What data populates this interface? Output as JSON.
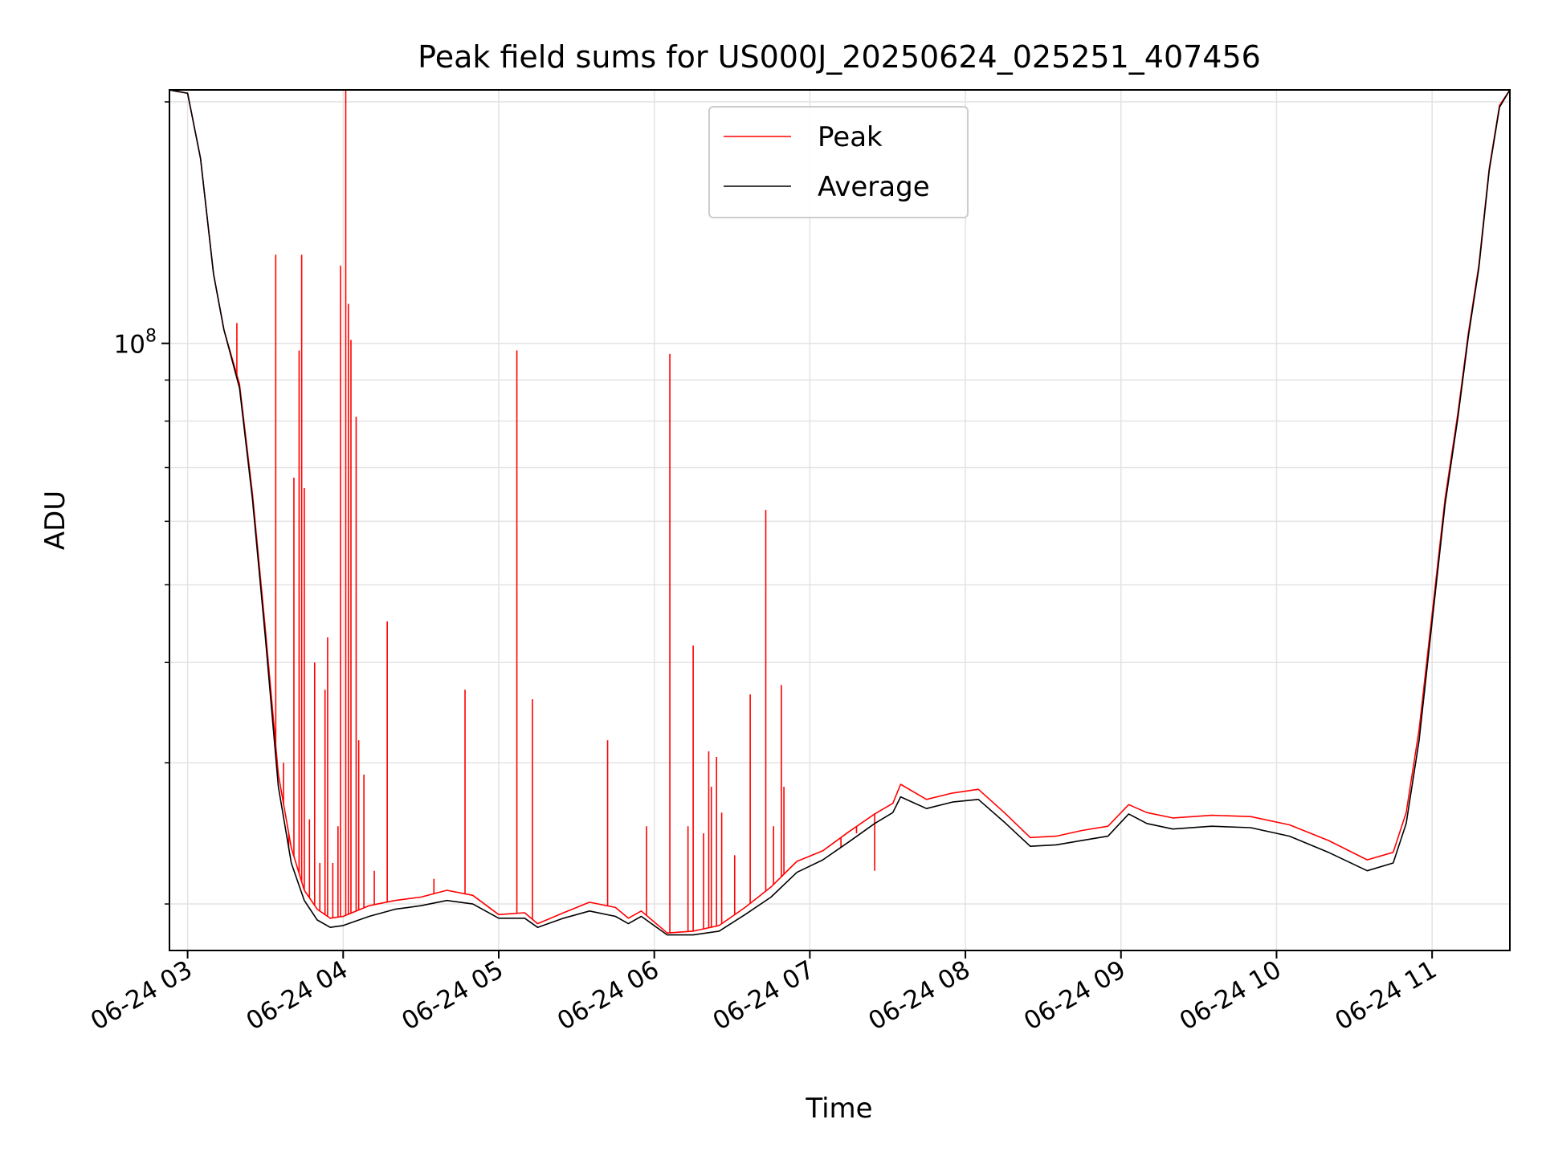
{
  "chart_data": {
    "type": "line",
    "title": "Peak field sums for US000J_20250624_025251_407456",
    "xlabel": "Time",
    "ylabel": "ADU",
    "x_axis": "date",
    "y_scale": "log",
    "grid": true,
    "legend_position": "top-center",
    "xlim": [
      "2025-06-24 02:53",
      "2025-06-24 11:30"
    ],
    "ylim": [
      17500000,
      207000000
    ],
    "x_ticks": [
      {
        "value": "2025-06-24 03:00",
        "label": "06-24 03"
      },
      {
        "value": "2025-06-24 04:00",
        "label": "06-24 04"
      },
      {
        "value": "2025-06-24 05:00",
        "label": "06-24 05"
      },
      {
        "value": "2025-06-24 06:00",
        "label": "06-24 06"
      },
      {
        "value": "2025-06-24 07:00",
        "label": "06-24 07"
      },
      {
        "value": "2025-06-24 08:00",
        "label": "06-24 08"
      },
      {
        "value": "2025-06-24 09:00",
        "label": "06-24 09"
      },
      {
        "value": "2025-06-24 10:00",
        "label": "06-24 10"
      },
      {
        "value": "2025-06-24 11:00",
        "label": "06-24 11"
      }
    ],
    "y_major_ticks": [
      {
        "value": 100000000,
        "base": "10",
        "exp": "8"
      }
    ],
    "y_minor_ticks": [
      20000000,
      30000000,
      40000000,
      50000000,
      60000000,
      70000000,
      80000000,
      90000000,
      200000000
    ],
    "series": [
      {
        "name": "Peak",
        "color": "#ff0000",
        "points": [
          [
            "2025-06-24 02:53",
            207000000
          ],
          [
            "2025-06-24 03:00",
            205000000
          ],
          [
            "2025-06-24 03:05",
            170000000
          ],
          [
            "2025-06-24 03:10",
            122000000
          ],
          [
            "2025-06-24 03:14",
            104000000
          ],
          [
            "2025-06-24 03:20",
            89000000
          ],
          [
            "2025-06-24 03:25",
            65000000
          ],
          [
            "2025-06-24 03:30",
            44000000
          ],
          [
            "2025-06-24 03:35",
            29000000
          ],
          [
            "2025-06-24 03:40",
            23500000
          ],
          [
            "2025-06-24 03:45",
            20800000
          ],
          [
            "2025-06-24 03:50",
            19700000
          ],
          [
            "2025-06-24 03:55",
            19200000
          ],
          [
            "2025-06-24 04:00",
            19300000
          ],
          [
            "2025-06-24 04:10",
            19900000
          ],
          [
            "2025-06-24 04:20",
            20200000
          ],
          [
            "2025-06-24 04:30",
            20400000
          ],
          [
            "2025-06-24 04:40",
            20800000
          ],
          [
            "2025-06-24 04:50",
            20500000
          ],
          [
            "2025-06-24 05:00",
            19400000
          ],
          [
            "2025-06-24 05:10",
            19500000
          ],
          [
            "2025-06-24 05:15",
            18900000
          ],
          [
            "2025-06-24 05:25",
            19500000
          ],
          [
            "2025-06-24 05:35",
            20100000
          ],
          [
            "2025-06-24 05:45",
            19800000
          ],
          [
            "2025-06-24 05:50",
            19200000
          ],
          [
            "2025-06-24 05:55",
            19600000
          ],
          [
            "2025-06-24 06:05",
            18400000
          ],
          [
            "2025-06-24 06:15",
            18500000
          ],
          [
            "2025-06-24 06:25",
            18800000
          ],
          [
            "2025-06-24 06:35",
            19800000
          ],
          [
            "2025-06-24 06:45",
            21000000
          ],
          [
            "2025-06-24 06:55",
            22600000
          ],
          [
            "2025-06-24 07:05",
            23300000
          ],
          [
            "2025-06-24 07:15",
            24600000
          ],
          [
            "2025-06-24 07:25",
            25900000
          ],
          [
            "2025-06-24 07:32",
            26700000
          ],
          [
            "2025-06-24 07:35",
            28200000
          ],
          [
            "2025-06-24 07:45",
            27000000
          ],
          [
            "2025-06-24 07:55",
            27500000
          ],
          [
            "2025-06-24 08:05",
            27800000
          ],
          [
            "2025-06-24 08:15",
            26000000
          ],
          [
            "2025-06-24 08:25",
            24200000
          ],
          [
            "2025-06-24 08:35",
            24300000
          ],
          [
            "2025-06-24 08:45",
            24700000
          ],
          [
            "2025-06-24 08:55",
            25000000
          ],
          [
            "2025-06-24 09:03",
            26600000
          ],
          [
            "2025-06-24 09:10",
            26000000
          ],
          [
            "2025-06-24 09:20",
            25600000
          ],
          [
            "2025-06-24 09:35",
            25800000
          ],
          [
            "2025-06-24 09:50",
            25700000
          ],
          [
            "2025-06-24 10:05",
            25100000
          ],
          [
            "2025-06-24 10:20",
            24000000
          ],
          [
            "2025-06-24 10:35",
            22700000
          ],
          [
            "2025-06-24 10:45",
            23200000
          ],
          [
            "2025-06-24 10:50",
            26000000
          ],
          [
            "2025-06-24 10:55",
            33000000
          ],
          [
            "2025-06-24 11:00",
            46000000
          ],
          [
            "2025-06-24 11:05",
            64000000
          ],
          [
            "2025-06-24 11:10",
            82000000
          ],
          [
            "2025-06-24 11:14",
            103000000
          ],
          [
            "2025-06-24 11:18",
            125000000
          ],
          [
            "2025-06-24 11:22",
            165000000
          ],
          [
            "2025-06-24 11:26",
            198000000
          ],
          [
            "2025-06-24 11:30",
            207000000
          ]
        ],
        "spikes": [
          [
            "2025-06-24 03:19",
            106000000
          ],
          [
            "2025-06-24 03:34",
            129000000
          ],
          [
            "2025-06-24 03:37",
            30000000
          ],
          [
            "2025-06-24 03:39",
            23500000
          ],
          [
            "2025-06-24 03:41",
            68000000
          ],
          [
            "2025-06-24 03:43",
            98000000
          ],
          [
            "2025-06-24 03:44",
            129000000
          ],
          [
            "2025-06-24 03:45",
            66000000
          ],
          [
            "2025-06-24 03:47",
            25500000
          ],
          [
            "2025-06-24 03:49",
            40000000
          ],
          [
            "2025-06-24 03:51",
            22500000
          ],
          [
            "2025-06-24 03:53",
            37000000
          ],
          [
            "2025-06-24 03:54",
            43000000
          ],
          [
            "2025-06-24 03:56",
            22500000
          ],
          [
            "2025-06-24 03:58",
            25000000
          ],
          [
            "2025-06-24 03:59",
            125000000
          ],
          [
            "2025-06-24 04:01",
            207000000
          ],
          [
            "2025-06-24 04:02",
            112000000
          ],
          [
            "2025-06-24 04:03",
            101000000
          ],
          [
            "2025-06-24 04:05",
            81000000
          ],
          [
            "2025-06-24 04:06",
            32000000
          ],
          [
            "2025-06-24 04:08",
            29000000
          ],
          [
            "2025-06-24 04:12",
            22000000
          ],
          [
            "2025-06-24 04:17",
            45000000
          ],
          [
            "2025-06-24 04:35",
            21500000
          ],
          [
            "2025-06-24 04:47",
            37000000
          ],
          [
            "2025-06-24 05:07",
            98000000
          ],
          [
            "2025-06-24 05:13",
            36000000
          ],
          [
            "2025-06-24 05:42",
            32000000
          ],
          [
            "2025-06-24 05:57",
            25000000
          ],
          [
            "2025-06-24 06:06",
            97000000
          ],
          [
            "2025-06-24 06:13",
            25000000
          ],
          [
            "2025-06-24 06:15",
            42000000
          ],
          [
            "2025-06-24 06:19",
            24500000
          ],
          [
            "2025-06-24 06:21",
            31000000
          ],
          [
            "2025-06-24 06:22",
            28000000
          ],
          [
            "2025-06-24 06:24",
            30500000
          ],
          [
            "2025-06-24 06:26",
            26000000
          ],
          [
            "2025-06-24 06:31",
            23000000
          ],
          [
            "2025-06-24 06:37",
            36500000
          ],
          [
            "2025-06-24 06:43",
            62000000
          ],
          [
            "2025-06-24 06:46",
            25000000
          ],
          [
            "2025-06-24 06:49",
            37500000
          ],
          [
            "2025-06-24 06:50",
            28000000
          ],
          [
            "2025-06-24 07:12",
            23500000
          ],
          [
            "2025-06-24 07:18",
            24500000
          ],
          [
            "2025-06-24 07:25",
            22000000
          ]
        ]
      },
      {
        "name": "Average",
        "color": "#000000",
        "points": [
          [
            "2025-06-24 02:53",
            207000000
          ],
          [
            "2025-06-24 03:00",
            205000000
          ],
          [
            "2025-06-24 03:05",
            170000000
          ],
          [
            "2025-06-24 03:10",
            122000000
          ],
          [
            "2025-06-24 03:14",
            104000000
          ],
          [
            "2025-06-24 03:20",
            88000000
          ],
          [
            "2025-06-24 03:25",
            64000000
          ],
          [
            "2025-06-24 03:30",
            43000000
          ],
          [
            "2025-06-24 03:35",
            28000000
          ],
          [
            "2025-06-24 03:40",
            22500000
          ],
          [
            "2025-06-24 03:45",
            20200000
          ],
          [
            "2025-06-24 03:50",
            19100000
          ],
          [
            "2025-06-24 03:55",
            18700000
          ],
          [
            "2025-06-24 04:00",
            18800000
          ],
          [
            "2025-06-24 04:10",
            19300000
          ],
          [
            "2025-06-24 04:20",
            19700000
          ],
          [
            "2025-06-24 04:30",
            19900000
          ],
          [
            "2025-06-24 04:40",
            20200000
          ],
          [
            "2025-06-24 04:50",
            20000000
          ],
          [
            "2025-06-24 05:00",
            19200000
          ],
          [
            "2025-06-24 05:10",
            19200000
          ],
          [
            "2025-06-24 05:15",
            18700000
          ],
          [
            "2025-06-24 05:25",
            19200000
          ],
          [
            "2025-06-24 05:35",
            19600000
          ],
          [
            "2025-06-24 05:45",
            19300000
          ],
          [
            "2025-06-24 05:50",
            18900000
          ],
          [
            "2025-06-24 05:55",
            19300000
          ],
          [
            "2025-06-24 06:05",
            18300000
          ],
          [
            "2025-06-24 06:15",
            18300000
          ],
          [
            "2025-06-24 06:25",
            18500000
          ],
          [
            "2025-06-24 06:35",
            19400000
          ],
          [
            "2025-06-24 06:45",
            20400000
          ],
          [
            "2025-06-24 06:55",
            21900000
          ],
          [
            "2025-06-24 07:05",
            22700000
          ],
          [
            "2025-06-24 07:15",
            23900000
          ],
          [
            "2025-06-24 07:25",
            25200000
          ],
          [
            "2025-06-24 07:32",
            26000000
          ],
          [
            "2025-06-24 07:35",
            27200000
          ],
          [
            "2025-06-24 07:45",
            26300000
          ],
          [
            "2025-06-24 07:55",
            26800000
          ],
          [
            "2025-06-24 08:05",
            27000000
          ],
          [
            "2025-06-24 08:15",
            25300000
          ],
          [
            "2025-06-24 08:25",
            23600000
          ],
          [
            "2025-06-24 08:35",
            23700000
          ],
          [
            "2025-06-24 08:45",
            24000000
          ],
          [
            "2025-06-24 08:55",
            24300000
          ],
          [
            "2025-06-24 09:03",
            25900000
          ],
          [
            "2025-06-24 09:10",
            25200000
          ],
          [
            "2025-06-24 09:20",
            24800000
          ],
          [
            "2025-06-24 09:35",
            25000000
          ],
          [
            "2025-06-24 09:50",
            24900000
          ],
          [
            "2025-06-24 10:05",
            24300000
          ],
          [
            "2025-06-24 10:20",
            23200000
          ],
          [
            "2025-06-24 10:35",
            22000000
          ],
          [
            "2025-06-24 10:45",
            22500000
          ],
          [
            "2025-06-24 10:50",
            25200000
          ],
          [
            "2025-06-24 10:55",
            32000000
          ],
          [
            "2025-06-24 11:00",
            45000000
          ],
          [
            "2025-06-24 11:05",
            63000000
          ],
          [
            "2025-06-24 11:10",
            81000000
          ],
          [
            "2025-06-24 11:14",
            102000000
          ],
          [
            "2025-06-24 11:18",
            124000000
          ],
          [
            "2025-06-24 11:22",
            164000000
          ],
          [
            "2025-06-24 11:26",
            197000000
          ],
          [
            "2025-06-24 11:30",
            207000000
          ]
        ]
      }
    ]
  }
}
